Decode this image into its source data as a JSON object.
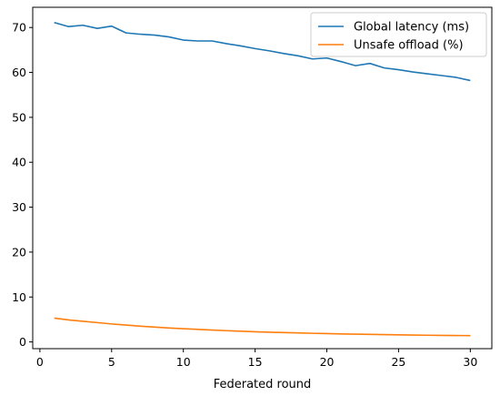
{
  "chart_data": {
    "type": "line",
    "title": "",
    "xlabel": "Federated round",
    "ylabel": "",
    "xlim": [
      -0.5,
      31.5
    ],
    "ylim": [
      -1.5,
      74.5
    ],
    "xticks": [
      0,
      5,
      10,
      15,
      20,
      25,
      30
    ],
    "yticks": [
      0,
      10,
      20,
      30,
      40,
      50,
      60,
      70
    ],
    "grid": false,
    "legend_position": "top-right",
    "x": [
      1,
      2,
      3,
      4,
      5,
      6,
      7,
      8,
      9,
      10,
      11,
      12,
      13,
      14,
      15,
      16,
      17,
      18,
      19,
      20,
      21,
      22,
      23,
      24,
      25,
      26,
      27,
      28,
      29,
      30
    ],
    "series": [
      {
        "name": "Global latency (ms)",
        "color": "#1f77b4",
        "values": [
          71.1,
          70.2,
          70.5,
          69.8,
          70.3,
          68.8,
          68.5,
          68.3,
          67.9,
          67.2,
          67.0,
          67.0,
          66.4,
          65.9,
          65.3,
          64.8,
          64.2,
          63.7,
          63.0,
          63.2,
          62.4,
          61.5,
          62.0,
          61.0,
          60.6,
          60.1,
          59.7,
          59.3,
          58.9,
          58.2
        ]
      },
      {
        "name": "Unsafe offload (%)",
        "color": "#ff7f0e",
        "values": [
          5.3,
          4.9,
          4.6,
          4.3,
          4.0,
          3.75,
          3.5,
          3.3,
          3.1,
          2.95,
          2.8,
          2.65,
          2.5,
          2.38,
          2.27,
          2.17,
          2.08,
          2.0,
          1.92,
          1.85,
          1.78,
          1.72,
          1.67,
          1.62,
          1.57,
          1.53,
          1.49,
          1.45,
          1.42,
          1.4
        ]
      }
    ]
  }
}
